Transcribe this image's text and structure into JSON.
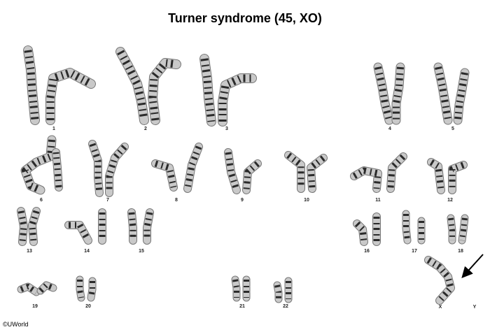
{
  "title": "Turner syndrome (45, XO)",
  "copyright": "©UWorld",
  "labels": {
    "c1": "1",
    "c2": "2",
    "c3": "3",
    "c4": "4",
    "c5": "5",
    "c6": "6",
    "c7": "7",
    "c8": "8",
    "c9": "9",
    "c10": "10",
    "c11": "11",
    "c12": "12",
    "c13": "13",
    "c14": "14",
    "c15": "15",
    "c16": "16",
    "c17": "17",
    "c18": "18",
    "c19": "19",
    "c20": "20",
    "c21": "21",
    "c22": "22",
    "cX": "X",
    "cY": "Y"
  },
  "colors": {
    "chromosome_fill": "#c9c9c9",
    "band": "#2a2a2a",
    "arrow": "#000000"
  }
}
